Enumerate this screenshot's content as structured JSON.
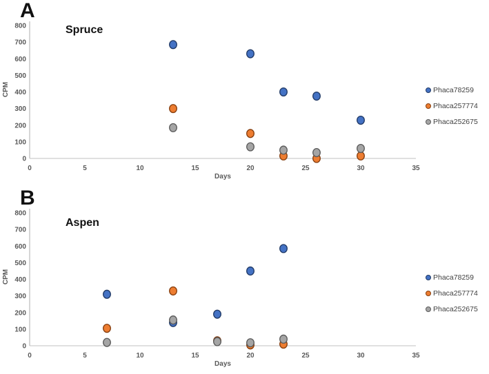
{
  "figure": {
    "type": "two-panel scatter figure",
    "background": "#ffffff"
  },
  "style": {
    "axis_line_color": "#C0C0C0",
    "tick_label_color": "#595959",
    "axis_title_color": "#595959",
    "legend_text_color": "#404040",
    "panel_letter_color": "#111111",
    "title_color": "#111111"
  },
  "chart_data": [
    {
      "type": "scatter",
      "panel_label": "A",
      "title": "Spruce",
      "xlabel": "Days",
      "ylabel": "CPM",
      "xlim": [
        0,
        35
      ],
      "ylim": [
        0,
        800
      ],
      "xticks": [
        0,
        5,
        10,
        15,
        20,
        25,
        30,
        35
      ],
      "yticks": [
        0,
        100,
        200,
        300,
        400,
        500,
        600,
        700,
        800
      ],
      "grid": false,
      "legend_position": "right",
      "series": [
        {
          "name": "Phaca78259",
          "fill": "#4472C4",
          "stroke": "#1F3864",
          "points": [
            [
              13,
              685
            ],
            [
              20,
              630
            ],
            [
              23,
              400
            ],
            [
              26,
              375
            ],
            [
              30,
              230
            ]
          ]
        },
        {
          "name": "Phaca257774",
          "fill": "#ED7D31",
          "stroke": "#843C0C",
          "points": [
            [
              13,
              300
            ],
            [
              20,
              150
            ],
            [
              23,
              15
            ],
            [
              26,
              0
            ],
            [
              30,
              15
            ]
          ]
        },
        {
          "name": "Phaca252675",
          "fill": "#A5A5A5",
          "stroke": "#595959",
          "points": [
            [
              13,
              185
            ],
            [
              20,
              70
            ],
            [
              23,
              50
            ],
            [
              26,
              35
            ],
            [
              30,
              60
            ]
          ]
        }
      ]
    },
    {
      "type": "scatter",
      "panel_label": "B",
      "title": "Aspen",
      "xlabel": "Days",
      "ylabel": "CPM",
      "xlim": [
        0,
        35
      ],
      "ylim": [
        0,
        800
      ],
      "xticks": [
        0,
        5,
        10,
        15,
        20,
        25,
        30,
        35
      ],
      "yticks": [
        0,
        100,
        200,
        300,
        400,
        500,
        600,
        700,
        800
      ],
      "grid": false,
      "legend_position": "right",
      "series": [
        {
          "name": "Phaca78259",
          "fill": "#4472C4",
          "stroke": "#1F3864",
          "points": [
            [
              7,
              310
            ],
            [
              13,
              140
            ],
            [
              17,
              190
            ],
            [
              20,
              450
            ],
            [
              23,
              585
            ]
          ]
        },
        {
          "name": "Phaca257774",
          "fill": "#ED7D31",
          "stroke": "#843C0C",
          "points": [
            [
              7,
              105
            ],
            [
              13,
              330
            ],
            [
              17,
              30
            ],
            [
              20,
              5
            ],
            [
              23,
              10
            ]
          ]
        },
        {
          "name": "Phaca252675",
          "fill": "#A5A5A5",
          "stroke": "#595959",
          "points": [
            [
              7,
              20
            ],
            [
              13,
              155
            ],
            [
              17,
              25
            ],
            [
              20,
              18
            ],
            [
              23,
              40
            ]
          ]
        }
      ]
    }
  ]
}
